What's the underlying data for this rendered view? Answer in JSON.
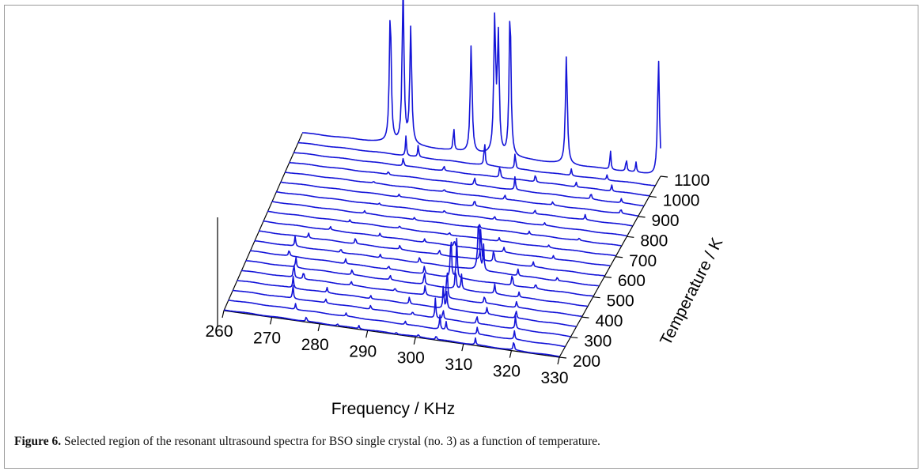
{
  "chart_data": {
    "type": "line",
    "view": "3d-waterfall",
    "xlabel": "Frequency / KHz",
    "ylabel": "Temperature / K",
    "xlim": [
      260,
      330
    ],
    "ylim": [
      200,
      1100
    ],
    "x_ticks": [
      "260",
      "270",
      "280",
      "290",
      "300",
      "310",
      "320",
      "330"
    ],
    "y_ticks": [
      "200",
      "300",
      "400",
      "500",
      "600",
      "700",
      "800",
      "900",
      "1000",
      "1100"
    ],
    "grid": false,
    "legend": "none",
    "line_color": "#1414d8",
    "series": [
      {
        "temperature": 200,
        "peaks": [
          [
            277.2,
            0.3
          ],
          [
            283.7,
            0.12
          ],
          [
            288.2,
            0.2
          ],
          [
            296.0,
            0.12
          ],
          [
            300.6,
            0.15
          ],
          [
            304.3,
            0.25
          ],
          [
            312.5,
            0.4
          ],
          [
            320.5,
            0.6
          ]
        ]
      },
      {
        "temperature": 250,
        "peaks": [
          [
            274.0,
            0.35
          ],
          [
            284.5,
            0.18
          ],
          [
            296.8,
            0.22
          ],
          [
            304.0,
            0.9
          ],
          [
            305.3,
            0.5
          ],
          [
            311.8,
            0.45
          ],
          [
            319.5,
            0.5
          ]
        ]
      },
      {
        "temperature": 300,
        "peaks": [
          [
            272.5,
            0.8
          ],
          [
            279.3,
            0.25
          ],
          [
            288.6,
            0.25
          ],
          [
            297.3,
            0.2
          ],
          [
            302.0,
            1.2
          ],
          [
            303.6,
            0.6
          ],
          [
            310.6,
            0.5
          ],
          [
            318.6,
            0.8
          ]
        ]
      },
      {
        "temperature": 350,
        "peaks": [
          [
            271.6,
            0.7
          ],
          [
            278.6,
            0.3
          ],
          [
            287.6,
            0.2
          ],
          [
            295.6,
            0.45
          ],
          [
            302.6,
            1.5
          ],
          [
            303.3,
            1.0
          ],
          [
            311.6,
            0.4
          ],
          [
            317.6,
            0.5
          ]
        ]
      },
      {
        "temperature": 400,
        "peaks": [
          [
            270.8,
            0.9
          ],
          [
            272.8,
            0.5
          ],
          [
            282.6,
            0.25
          ],
          [
            291.6,
            0.2
          ],
          [
            297.8,
            0.6
          ],
          [
            302.3,
            2.0
          ],
          [
            310.0,
            0.5
          ],
          [
            316.6,
            0.4
          ]
        ]
      },
      {
        "temperature": 450,
        "peaks": [
          [
            270.3,
            0.6
          ],
          [
            281.8,
            0.35
          ],
          [
            289.6,
            0.3
          ],
          [
            296.6,
            0.8
          ],
          [
            303.0,
            1.4
          ],
          [
            304.2,
            0.9
          ],
          [
            311.0,
            0.6
          ],
          [
            316.0,
            0.3
          ]
        ]
      },
      {
        "temperature": 500,
        "peaks": [
          [
            268.0,
            0.4
          ],
          [
            279.5,
            0.3
          ],
          [
            288.3,
            0.2
          ],
          [
            295.6,
            0.5
          ],
          [
            301.0,
            3.0
          ],
          [
            302.2,
            2.4
          ],
          [
            313.5,
            0.8
          ],
          [
            318.3,
            0.3
          ]
        ]
      },
      {
        "temperature": 550,
        "peaks": [
          [
            268.3,
            0.6
          ],
          [
            277.6,
            0.25
          ],
          [
            285.6,
            0.2
          ],
          [
            293.6,
            0.4
          ],
          [
            305.6,
            3.1
          ],
          [
            306.6,
            1.5
          ],
          [
            313.6,
            0.4
          ],
          [
            321.6,
            0.25
          ]
        ]
      },
      {
        "temperature": 600,
        "peaks": [
          [
            270.1,
            0.3
          ],
          [
            279.6,
            0.4
          ],
          [
            288.6,
            0.25
          ],
          [
            296.6,
            0.3
          ],
          [
            305.0,
            2.2
          ],
          [
            307.6,
            0.8
          ],
          [
            315.6,
            0.3
          ]
        ]
      },
      {
        "temperature": 650,
        "peaks": [
          [
            273.6,
            0.2
          ],
          [
            283.6,
            0.2
          ],
          [
            292.6,
            0.2
          ],
          [
            298.6,
            0.4
          ],
          [
            308.6,
            0.3
          ],
          [
            318.6,
            0.2
          ]
        ]
      },
      {
        "temperature": 700,
        "peaks": [
          [
            276.6,
            0.15
          ],
          [
            286.6,
            0.15
          ],
          [
            296.6,
            0.15
          ],
          [
            306.6,
            0.2
          ],
          [
            316.6,
            0.15
          ]
        ]
      },
      {
        "temperature": 750,
        "peaks": [
          [
            278.6,
            0.15
          ],
          [
            288.6,
            0.15
          ],
          [
            301.6,
            0.2
          ],
          [
            311.6,
            0.2
          ],
          [
            321.6,
            0.15
          ]
        ]
      },
      {
        "temperature": 800,
        "peaks": [
          [
            280.6,
            0.1
          ],
          [
            293.6,
            0.15
          ],
          [
            303.6,
            0.2
          ],
          [
            313.6,
            0.15
          ]
        ]
      },
      {
        "temperature": 850,
        "peaks": [
          [
            283.6,
            0.15
          ],
          [
            298.6,
            0.4
          ],
          [
            310.6,
            0.25
          ],
          [
            320.6,
            0.3
          ]
        ]
      },
      {
        "temperature": 900,
        "peaks": [
          [
            277.6,
            0.1
          ],
          [
            291.6,
            0.15
          ],
          [
            303.6,
            0.3
          ],
          [
            313.1,
            0.2
          ],
          [
            326.6,
            0.3
          ]
        ]
      },
      {
        "temperature": 950,
        "peaks": [
          [
            279.6,
            0.2
          ],
          [
            296.6,
            0.5
          ],
          [
            304.6,
            0.8
          ],
          [
            319.6,
            0.4
          ],
          [
            325.6,
            0.25
          ]
        ]
      },
      {
        "temperature": 1000,
        "peaks": [
          [
            281.6,
            0.5
          ],
          [
            289.6,
            0.3
          ],
          [
            300.6,
            0.8
          ],
          [
            307.6,
            0.5
          ],
          [
            315.6,
            0.3
          ],
          [
            322.6,
            0.4
          ]
        ]
      },
      {
        "temperature": 1050,
        "peaks": [
          [
            281.2,
            1.2
          ],
          [
            283.6,
            0.7
          ],
          [
            296.6,
            1.5
          ],
          [
            302.6,
            1.0
          ],
          [
            313.6,
            0.4
          ],
          [
            320.6,
            0.3
          ]
        ]
      },
      {
        "temperature": 1100,
        "peaks": [
          [
            277.2,
            8.0
          ],
          [
            279.7,
            9.5
          ],
          [
            281.2,
            7.0
          ],
          [
            289.6,
            1.5
          ],
          [
            293.0,
            6.5
          ],
          [
            297.6,
            8.0
          ],
          [
            298.3,
            7.0
          ],
          [
            300.6,
            9.0
          ],
          [
            311.6,
            6.5
          ],
          [
            320.2,
            1.2
          ],
          [
            323.3,
            0.8
          ],
          [
            325.2,
            0.6
          ],
          [
            329.6,
            7.0
          ]
        ]
      }
    ]
  },
  "caption": {
    "label": "Figure 6.",
    "text": " Selected region of the resonant ultrasound spectra for BSO single crystal (no. 3) as a function of temperature."
  }
}
